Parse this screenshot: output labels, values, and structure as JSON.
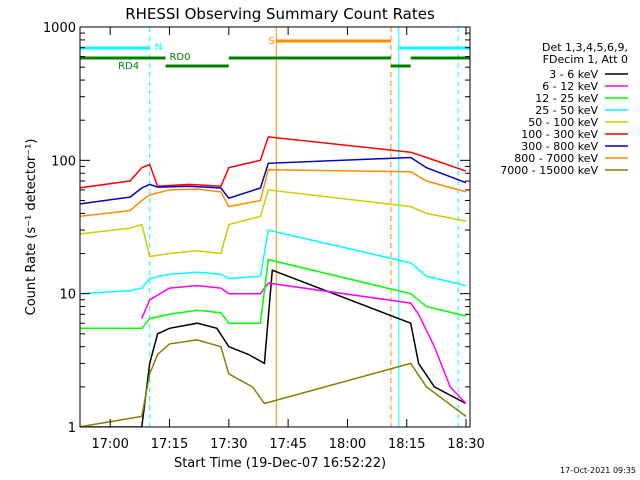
{
  "chart_data": {
    "type": "line",
    "title": "RHESSI Observing Summary Count Rates",
    "xlabel": "Start Time (19-Dec-07 16:52:22)",
    "ylabel": "Count Rate (s⁻¹ detector⁻¹)",
    "yscale": "log",
    "ylim": [
      1,
      1000
    ],
    "xlim": [
      "16:52:22",
      "18:31:00"
    ],
    "x_ticks": [
      "17:00",
      "17:15",
      "17:30",
      "17:45",
      "18:00",
      "18:15",
      "18:30"
    ],
    "y_ticks": [
      "1",
      "10",
      "100",
      "1000"
    ],
    "legend_position": "right",
    "legend_header": [
      "Det 1,3,4,5,6,9,",
      "FDecim 1, Att 0"
    ],
    "timestamp": "17-Oct-2021 09:35",
    "flags": {
      "saa_label": "S",
      "night_label": "N",
      "rd0_label": "RD0",
      "rd4_label": "RD4"
    },
    "colors": {
      "night_bar": "#00ffff",
      "saa_bar": "#ff8c00",
      "rd_bar": "#008000"
    },
    "series": [
      {
        "name": "3 - 6 keV",
        "color": "#000000",
        "points": [
          [
            "16:52",
            1.0
          ],
          [
            "17:08",
            1.0
          ],
          [
            "17:10",
            3
          ],
          [
            "17:12",
            5
          ],
          [
            "17:15",
            5.5
          ],
          [
            "17:22",
            6
          ],
          [
            "17:27",
            5.5
          ],
          [
            "17:30",
            4
          ],
          [
            "17:35",
            3.5
          ],
          [
            "17:39",
            3
          ],
          [
            "17:41",
            15
          ],
          [
            "18:16",
            6
          ],
          [
            "18:18",
            3
          ],
          [
            "18:22",
            2
          ],
          [
            "18:30",
            1.5
          ]
        ]
      },
      {
        "name": "6 - 12 keV",
        "color": "#ff00ff",
        "points": [
          [
            "17:08",
            6.5
          ],
          [
            "17:10",
            9
          ],
          [
            "17:15",
            11
          ],
          [
            "17:22",
            11.5
          ],
          [
            "17:28",
            11
          ],
          [
            "17:30",
            10
          ],
          [
            "17:38",
            10
          ],
          [
            "17:40",
            12
          ],
          [
            "18:16",
            8.5
          ],
          [
            "18:18",
            7
          ],
          [
            "18:22",
            4
          ],
          [
            "18:26",
            2
          ],
          [
            "18:30",
            1.5
          ]
        ]
      },
      {
        "name": "12 - 25 keV",
        "color": "#00ff00",
        "points": [
          [
            "16:52",
            5.5
          ],
          [
            "17:08",
            5.5
          ],
          [
            "17:10",
            6.5
          ],
          [
            "17:15",
            7
          ],
          [
            "17:22",
            7.5
          ],
          [
            "17:28",
            7.2
          ],
          [
            "17:30",
            6
          ],
          [
            "17:38",
            6
          ],
          [
            "17:40",
            18
          ],
          [
            "18:16",
            10
          ],
          [
            "18:20",
            8
          ],
          [
            "18:30",
            6.8
          ]
        ]
      },
      {
        "name": "25 - 50 keV",
        "color": "#00ffff",
        "points": [
          [
            "16:52",
            10
          ],
          [
            "17:05",
            10.5
          ],
          [
            "17:08",
            11
          ],
          [
            "17:10",
            13
          ],
          [
            "17:15",
            14
          ],
          [
            "17:22",
            14.5
          ],
          [
            "17:28",
            14
          ],
          [
            "17:30",
            13
          ],
          [
            "17:38",
            13.5
          ],
          [
            "17:40",
            30
          ],
          [
            "18:16",
            17
          ],
          [
            "18:20",
            13.5
          ],
          [
            "18:30",
            11.5
          ]
        ]
      },
      {
        "name": "50 - 100 keV",
        "color": "#cccc00",
        "points": [
          [
            "16:52",
            28
          ],
          [
            "17:05",
            31
          ],
          [
            "17:08",
            33
          ],
          [
            "17:10",
            19
          ],
          [
            "17:15",
            20
          ],
          [
            "17:22",
            21
          ],
          [
            "17:28",
            20
          ],
          [
            "17:30",
            33
          ],
          [
            "17:38",
            38
          ],
          [
            "17:40",
            60
          ],
          [
            "18:16",
            45
          ],
          [
            "18:20",
            40
          ],
          [
            "18:30",
            35
          ]
        ]
      },
      {
        "name": "100 - 300 keV",
        "color": "#ff0000",
        "points": [
          [
            "16:52",
            62
          ],
          [
            "17:05",
            70
          ],
          [
            "17:08",
            88
          ],
          [
            "17:10",
            93
          ],
          [
            "17:12",
            64
          ],
          [
            "17:20",
            66
          ],
          [
            "17:28",
            64
          ],
          [
            "17:30",
            88
          ],
          [
            "17:38",
            100
          ],
          [
            "17:40",
            150
          ],
          [
            "18:16",
            115
          ],
          [
            "18:20",
            105
          ],
          [
            "18:30",
            83
          ]
        ]
      },
      {
        "name": "300 - 800 keV",
        "color": "#0000cc",
        "points": [
          [
            "16:52",
            47
          ],
          [
            "17:05",
            53
          ],
          [
            "17:08",
            62
          ],
          [
            "17:10",
            66
          ],
          [
            "17:12",
            63
          ],
          [
            "17:20",
            64
          ],
          [
            "17:28",
            62
          ],
          [
            "17:30",
            52
          ],
          [
            "17:38",
            62
          ],
          [
            "17:40",
            95
          ],
          [
            "18:16",
            105
          ],
          [
            "18:20",
            88
          ],
          [
            "18:30",
            68
          ]
        ]
      },
      {
        "name": "800 - 7000 keV",
        "color": "#ff8c00",
        "points": [
          [
            "16:52",
            38
          ],
          [
            "17:05",
            42
          ],
          [
            "17:08",
            50
          ],
          [
            "17:10",
            55
          ],
          [
            "17:15",
            60
          ],
          [
            "17:22",
            61
          ],
          [
            "17:28",
            58
          ],
          [
            "17:30",
            45
          ],
          [
            "17:38",
            50
          ],
          [
            "17:40",
            85
          ],
          [
            "18:16",
            82
          ],
          [
            "18:20",
            70
          ],
          [
            "18:30",
            58
          ]
        ]
      },
      {
        "name": "7000 - 15000 keV",
        "color": "#808000",
        "points": [
          [
            "16:52",
            1.0
          ],
          [
            "17:08",
            1.2
          ],
          [
            "17:10",
            2.5
          ],
          [
            "17:12",
            3.5
          ],
          [
            "17:15",
            4.2
          ],
          [
            "17:22",
            4.5
          ],
          [
            "17:28",
            4.0
          ],
          [
            "17:30",
            2.5
          ],
          [
            "17:36",
            2.0
          ],
          [
            "17:39",
            1.5
          ],
          [
            "18:16",
            3
          ],
          [
            "18:20",
            2
          ],
          [
            "18:30",
            1.2
          ]
        ]
      }
    ]
  }
}
